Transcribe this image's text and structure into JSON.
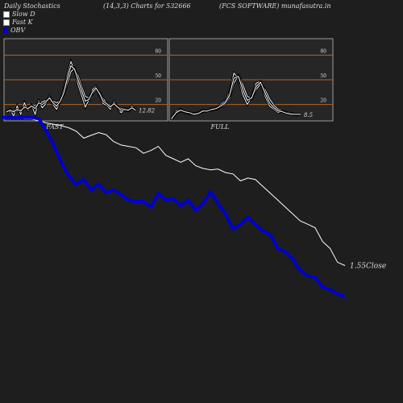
{
  "header": {
    "title": "Daily Stochastics",
    "params": "(14,3,3) Charts for 532666",
    "company": "(FCS SOFTWARE) munafasutra.in"
  },
  "legend": [
    {
      "label": "Slow  D",
      "color": "#ffffff"
    },
    {
      "label": "Fast  K",
      "color": "#ffffff"
    },
    {
      "label": "OBV",
      "color": "#0000cc"
    }
  ],
  "chart_data": [
    {
      "type": "line",
      "title": "FAST",
      "levels": [
        20,
        50,
        80
      ],
      "ylim": [
        0,
        100
      ],
      "last_value_label": "12.82",
      "series": [
        {
          "values": [
            10,
            14,
            6,
            18,
            8,
            22,
            13,
            19,
            8,
            24,
            16,
            21,
            30,
            20,
            14,
            24,
            38,
            57,
            72,
            62,
            44,
            31,
            17,
            25,
            38,
            42,
            31,
            21,
            19,
            14,
            23,
            17,
            10,
            14,
            12,
            18,
            13
          ]
        },
        {
          "values": [
            12,
            11,
            13,
            12,
            14,
            15,
            16,
            17,
            19,
            21,
            23,
            25,
            27,
            24,
            22,
            25,
            32,
            46,
            60,
            64,
            55,
            42,
            30,
            28,
            33,
            38,
            35,
            27,
            22,
            19,
            20,
            18,
            15,
            15,
            14,
            15,
            14
          ]
        },
        {
          "values": [
            11,
            13,
            11,
            14,
            12,
            17,
            15,
            18,
            15,
            22,
            20,
            23,
            28,
            22,
            18,
            24,
            34,
            52,
            67,
            63,
            50,
            37,
            24,
            26,
            35,
            40,
            33,
            24,
            21,
            17,
            21,
            17,
            13,
            14,
            13,
            16,
            13
          ]
        }
      ]
    },
    {
      "type": "line",
      "title": "FULL",
      "levels": [
        20,
        50,
        80
      ],
      "ylim": [
        0,
        100
      ],
      "last_value_label": "8.5",
      "series": [
        {
          "values": [
            3,
            12,
            14,
            10,
            9,
            8,
            10,
            13,
            12,
            15,
            15,
            20,
            24,
            34,
            58,
            52,
            32,
            20,
            29,
            46,
            48,
            30,
            18,
            14,
            10,
            12,
            9,
            8,
            7,
            8
          ]
        },
        {
          "values": [
            2,
            9,
            12,
            11,
            10,
            9,
            9,
            11,
            12,
            13,
            14,
            17,
            20,
            28,
            46,
            55,
            44,
            30,
            27,
            38,
            45,
            38,
            27,
            19,
            14,
            12,
            10,
            9,
            8,
            8
          ]
        },
        {
          "values": [
            3,
            10,
            13,
            11,
            10,
            8,
            9,
            12,
            12,
            14,
            15,
            18,
            22,
            31,
            52,
            54,
            38,
            25,
            28,
            42,
            47,
            34,
            22,
            16,
            12,
            11,
            9,
            8,
            8,
            8
          ]
        }
      ]
    },
    {
      "type": "line",
      "close_label": "1.55Close",
      "series": [
        {
          "name": "OBV",
          "values": [
            100,
            100,
            100,
            100,
            100,
            98,
            80,
            60,
            35,
            15,
            3,
            10,
            -5,
            3,
            -9,
            -5,
            -12,
            -20,
            -22,
            -22,
            -30,
            -10,
            -20,
            -18,
            -28,
            -20,
            -35,
            -25,
            -8,
            -25,
            -40,
            -62,
            -55,
            -45,
            -55,
            -65,
            -70,
            -90,
            -95,
            -105,
            -122,
            -130,
            -132,
            -146,
            -150,
            -156,
            -160
          ]
        },
        {
          "values": [
            100,
            100,
            102,
            98,
            98,
            95,
            92,
            90,
            88,
            85,
            80,
            70,
            74,
            78,
            75,
            65,
            60,
            58,
            56,
            48,
            52,
            58,
            45,
            40,
            35,
            40,
            30,
            26,
            24,
            25,
            20,
            18,
            8,
            12,
            10,
            0,
            -10,
            -20,
            -30,
            -40,
            -50,
            -55,
            -60,
            -80,
            -90,
            -110,
            -115
          ]
        }
      ]
    }
  ]
}
